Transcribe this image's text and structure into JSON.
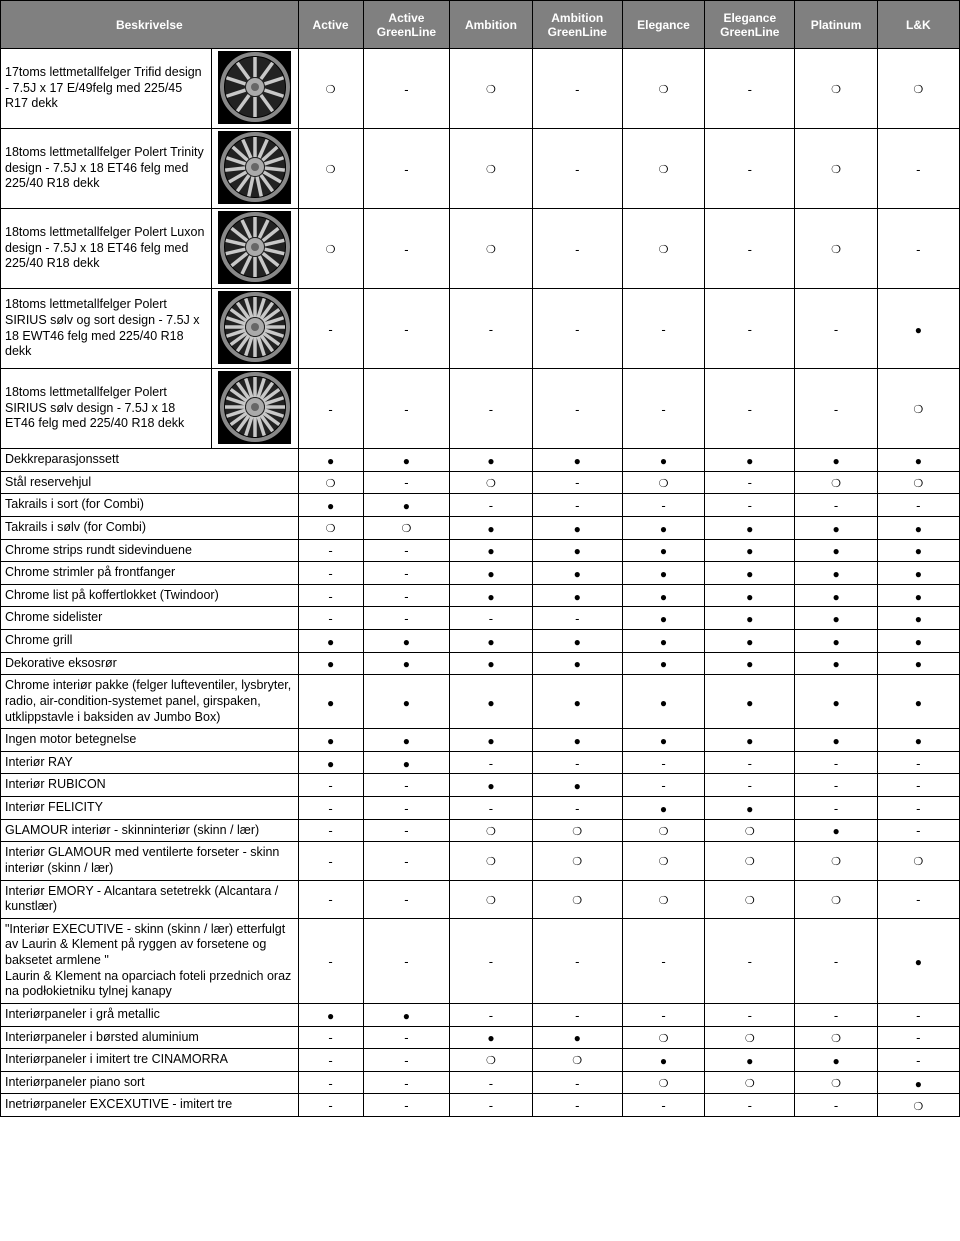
{
  "header": {
    "description": "Beskrivelse",
    "columns": [
      "Active",
      "Active GreenLine",
      "Ambition",
      "Ambition GreenLine",
      "Elegance",
      "Elegance GreenLine",
      "Platinum",
      "L&K"
    ]
  },
  "symbols": {
    "standard": "●",
    "optional": "❍",
    "na": "-"
  },
  "colors": {
    "header_bg": "#808080",
    "header_fg": "#ffffff",
    "border": "#000000",
    "wheel_bg": "#000000"
  },
  "wheel_rows": [
    {
      "label": "17toms lettmetallfelger Trifid design - 7.5J x 17 E/49felg med 225/45 R17 dekk",
      "spokes": 10,
      "v": [
        "o",
        "d",
        "o",
        "d",
        "o",
        "d",
        "o",
        "o"
      ]
    },
    {
      "label": "18toms lettmetallfelger Polert Trinity design - 7.5J x 18 ET46 felg med 225/40 R18 dekk",
      "spokes": 15,
      "v": [
        "o",
        "d",
        "o",
        "d",
        "o",
        "d",
        "o",
        "d"
      ]
    },
    {
      "label": "18toms lettmetallfelger Polert Luxon design - 7.5J x 18 ET46 felg med 225/40 R18 dekk",
      "spokes": 14,
      "v": [
        "o",
        "d",
        "o",
        "d",
        "o",
        "d",
        "o",
        "d"
      ]
    },
    {
      "label": "18toms lettmetallfelger Polert SIRIUS sølv og sort design - 7.5J x 18 EWT46 felg med 225/40 R18 dekk",
      "spokes": 20,
      "v": [
        "d",
        "d",
        "d",
        "d",
        "d",
        "d",
        "d",
        "b"
      ]
    },
    {
      "label": "18toms lettmetallfelger Polert SIRIUS sølv design - 7.5J x 18 ET46 felg med 225/40 R18 dekk",
      "spokes": 20,
      "v": [
        "d",
        "d",
        "d",
        "d",
        "d",
        "d",
        "d",
        "o"
      ]
    }
  ],
  "simple_rows": [
    {
      "label": "Dekkreparasjonssett",
      "v": [
        "b",
        "b",
        "b",
        "b",
        "b",
        "b",
        "b",
        "b"
      ]
    },
    {
      "label": "Stål reservehjul",
      "v": [
        "o",
        "d",
        "o",
        "d",
        "o",
        "d",
        "o",
        "o"
      ]
    },
    {
      "label": "Takrails i sort (for Combi)",
      "v": [
        "b",
        "b",
        "d",
        "d",
        "d",
        "d",
        "d",
        "d"
      ]
    },
    {
      "label": "Takrails i sølv (for Combi)",
      "v": [
        "o",
        "o",
        "b",
        "b",
        "b",
        "b",
        "b",
        "b"
      ]
    },
    {
      "label": "Chrome strips rundt sidevinduene",
      "v": [
        "d",
        "d",
        "b",
        "b",
        "b",
        "b",
        "b",
        "b"
      ]
    },
    {
      "label": "Chrome strimler på frontfanger",
      "v": [
        "d",
        "d",
        "b",
        "b",
        "b",
        "b",
        "b",
        "b"
      ]
    },
    {
      "label": "Chrome list på koffertlokket (Twindoor)",
      "v": [
        "d",
        "d",
        "b",
        "b",
        "b",
        "b",
        "b",
        "b"
      ]
    },
    {
      "label": "Chrome sidelister",
      "v": [
        "d",
        "d",
        "d",
        "d",
        "b",
        "b",
        "b",
        "b"
      ]
    },
    {
      "label": "Chrome grill",
      "v": [
        "b",
        "b",
        "b",
        "b",
        "b",
        "b",
        "b",
        "b"
      ]
    },
    {
      "label": "Dekorative eksosrør",
      "v": [
        "b",
        "b",
        "b",
        "b",
        "b",
        "b",
        "b",
        "b"
      ]
    },
    {
      "label": "Chrome interiør pakke (felger lufteventiler, lysbryter, radio, air-condition-systemet panel, girspaken, utklippstavle i baksiden av Jumbo Box)",
      "v": [
        "b",
        "b",
        "b",
        "b",
        "b",
        "b",
        "b",
        "b"
      ]
    },
    {
      "label": "Ingen motor betegnelse",
      "v": [
        "b",
        "b",
        "b",
        "b",
        "b",
        "b",
        "b",
        "b"
      ]
    },
    {
      "label": "Interiør RAY",
      "v": [
        "b",
        "b",
        "d",
        "d",
        "d",
        "d",
        "d",
        "d"
      ]
    },
    {
      "label": "Interiør RUBICON",
      "v": [
        "d",
        "d",
        "b",
        "b",
        "d",
        "d",
        "d",
        "d"
      ]
    },
    {
      "label": "Interiør FELICITY",
      "v": [
        "d",
        "d",
        "d",
        "d",
        "b",
        "b",
        "d",
        "d"
      ]
    },
    {
      "label": "GLAMOUR interiør - skinninteriør (skinn / lær)",
      "v": [
        "d",
        "d",
        "o",
        "o",
        "o",
        "o",
        "b",
        "d"
      ]
    },
    {
      "label": "Interiør GLAMOUR med ventilerte forseter - skinn interiør (skinn / lær)",
      "v": [
        "d",
        "d",
        "o",
        "o",
        "o",
        "o",
        "o",
        "o"
      ]
    },
    {
      "label": "Interiør EMORY - Alcantara setetrekk (Alcantara / kunstlær)",
      "v": [
        "d",
        "d",
        "o",
        "o",
        "o",
        "o",
        "o",
        "d"
      ]
    },
    {
      "label": "\"Interiør EXECUTIVE - skinn (skinn / lær) etterfulgt av Laurin & Klement på ryggen av forsetene og baksetet armlene \"\nLaurin & Klement na oparciach foteli przednich oraz na podłokietniku tylnej kanapy",
      "v": [
        "d",
        "d",
        "d",
        "d",
        "d",
        "d",
        "d",
        "b"
      ]
    },
    {
      "label": "Interiørpaneler i grå metallic",
      "v": [
        "b",
        "b",
        "d",
        "d",
        "d",
        "d",
        "d",
        "d"
      ]
    },
    {
      "label": "Interiørpaneler i børsted aluminium",
      "v": [
        "d",
        "d",
        "b",
        "b",
        "o",
        "o",
        "o",
        "d"
      ]
    },
    {
      "label": "Interiørpaneler i imitert tre CINAMORRA",
      "v": [
        "d",
        "d",
        "o",
        "o",
        "b",
        "b",
        "b",
        "d"
      ]
    },
    {
      "label": "Interiørpaneler piano sort",
      "v": [
        "d",
        "d",
        "d",
        "d",
        "o",
        "o",
        "o",
        "b"
      ]
    },
    {
      "label": "Inetriørpaneler EXCEXUTIVE - imitert tre",
      "v": [
        "d",
        "d",
        "d",
        "d",
        "d",
        "d",
        "d",
        "o"
      ]
    }
  ]
}
